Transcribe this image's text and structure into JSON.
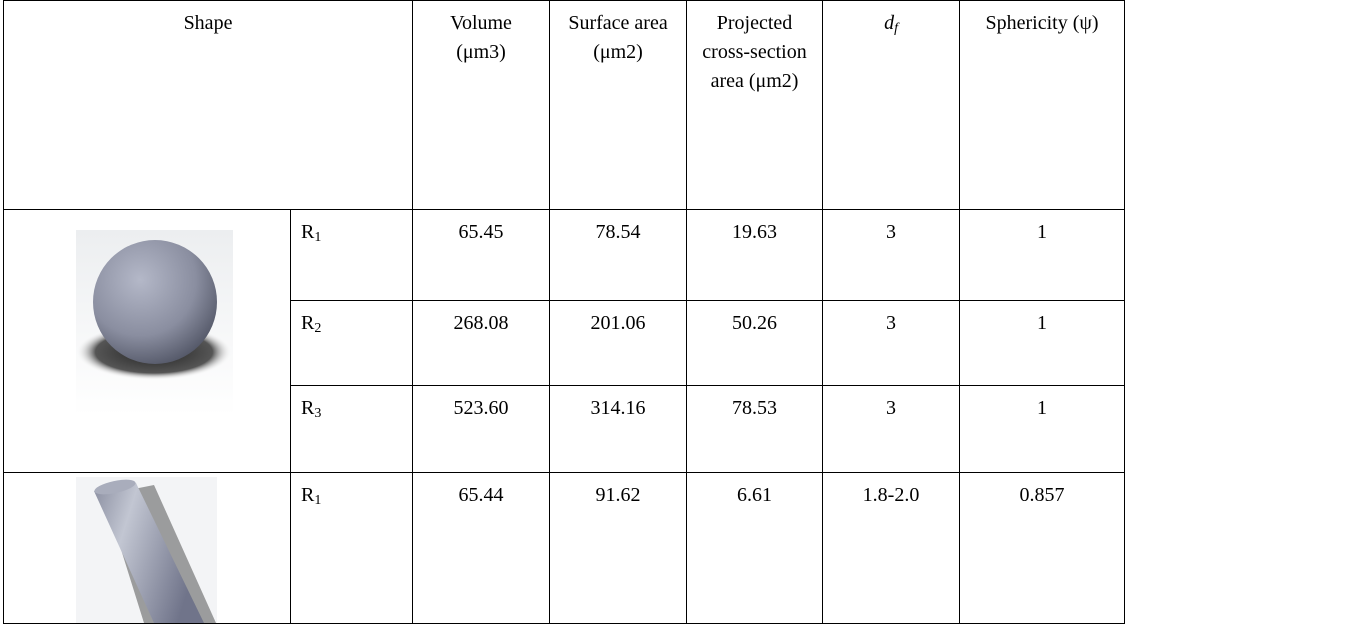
{
  "table": {
    "header": {
      "shape": "Shape",
      "volume": "Volume (μm3)",
      "surface_area": "Surface area (μm2)",
      "projected": "Projected cross-section area (μm2)",
      "df": {
        "base": "d",
        "sub": "f"
      },
      "sphericity": "Sphericity (ψ)"
    },
    "rows": [
      {
        "label": {
          "base": "R",
          "sub": "1"
        },
        "volume": "65.45",
        "surface_area": "78.54",
        "projected": "19.63",
        "df": "3",
        "sphericity": "1"
      },
      {
        "label": {
          "base": "R",
          "sub": "2"
        },
        "volume": "268.08",
        "surface_area": "201.06",
        "projected": "50.26",
        "df": "3",
        "sphericity": "1"
      },
      {
        "label": {
          "base": "R",
          "sub": "3"
        },
        "volume": "523.60",
        "surface_area": "314.16",
        "projected": "78.53",
        "df": "3",
        "sphericity": "1"
      },
      {
        "label": {
          "base": "R",
          "sub": "1"
        },
        "volume": "65.44",
        "surface_area": "91.62",
        "projected": "6.61",
        "df": "1.8-2.0",
        "sphericity": "0.857"
      }
    ]
  }
}
